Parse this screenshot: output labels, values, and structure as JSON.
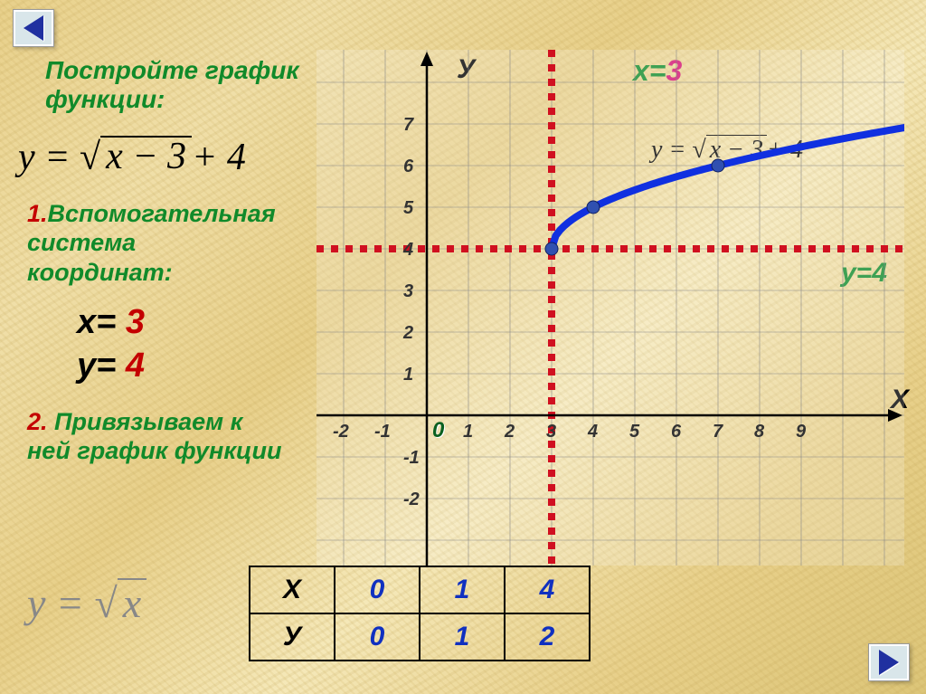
{
  "title": "Постройте график\nфункции:",
  "formula": {
    "lhs": "y",
    "inside": "x − 3",
    "tail": " + 4"
  },
  "step1": {
    "num": "1.",
    "text": "Вспомогательная\nсистема\nкоординат:"
  },
  "aux": {
    "x_label": "x= ",
    "x_val": "3",
    "y_label": "y= ",
    "y_val": "4"
  },
  "step2": {
    "num": "2.",
    "text": " Привязываем к\nней график функции"
  },
  "sqrt_basic": {
    "lhs": "y",
    "inside": "x"
  },
  "chart": {
    "grid_color": "#888888",
    "bg_color": "rgba(255,255,255,0.2)",
    "cell": 46,
    "origin_col": 2,
    "origin_row": 9,
    "cols": 13,
    "rows": 12,
    "x_ticks": [
      -2,
      -1,
      0,
      1,
      2,
      3,
      4,
      5,
      6,
      7,
      8,
      9
    ],
    "y_ticks": [
      -2,
      -1,
      1,
      2,
      3,
      4,
      5,
      6,
      7
    ],
    "zero_label": "0",
    "vline_x": 3,
    "hline_y": 4,
    "dash_color": "#d01020",
    "curve_color": "#1030e0",
    "curve_width": 8,
    "points": [
      [
        3,
        4
      ],
      [
        4,
        5
      ],
      [
        7,
        6
      ]
    ],
    "curve_end": [
      12,
      7
    ],
    "x3_label": {
      "x": "х",
      "eq": "=",
      "v": "3"
    },
    "y4_label": "у=4",
    "y_axis": "У",
    "x_axis": "Х",
    "on_chart_eq": {
      "lhs": "y",
      "inside": "x − 3",
      "tail": " + 4"
    }
  },
  "table": {
    "headX": "X",
    "headY": "У",
    "xs": [
      "0",
      "1",
      "4"
    ],
    "ys": [
      "0",
      "1",
      "2"
    ]
  },
  "nav": {
    "back": "back",
    "fwd": "forward"
  }
}
